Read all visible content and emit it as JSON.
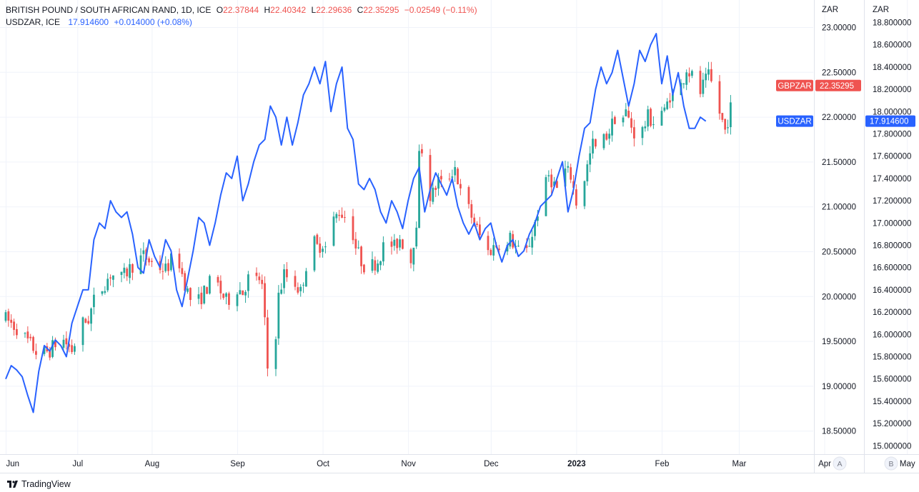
{
  "legend": {
    "main_symbol": "BRITISH POUND / SOUTH AFRICAN RAND, 1D, ICE",
    "o_label": "O",
    "o_value": "22.37844",
    "h_label": "H",
    "h_value": "22.40342",
    "l_label": "L",
    "l_value": "22.29636",
    "c_label": "C",
    "c_value": "22.35295",
    "change": "−0.02549 (−0.11%)",
    "compare_symbol": "USDZAR, ICE",
    "compare_value": "17.914600",
    "compare_change": "+0.014000 (+0.08%)"
  },
  "branding": {
    "text": "TradingView",
    "icon": "tradingview-logo-icon"
  },
  "colors": {
    "up": "#26a69a",
    "down": "#ef5350",
    "line": "#2962ff",
    "grid": "#f0f3fa",
    "axis_border": "#e0e3eb",
    "gbp_tag": "#ef5350",
    "usd_tag": "#2962ff"
  },
  "chart_data": {
    "type": "candlestick_with_line_overlay",
    "series": [
      {
        "name": "GBPZAR",
        "type": "candlestick",
        "axis": "A",
        "last_value": "22.35295",
        "ohlc_path": [
          [
            0,
            19.75
          ],
          [
            4,
            19.65
          ],
          [
            8,
            19.5
          ],
          [
            12,
            19.35
          ],
          [
            16,
            19.4
          ],
          [
            20,
            19.55
          ],
          [
            24,
            19.4
          ],
          [
            28,
            19.7
          ],
          [
            30,
            19.75
          ],
          [
            32,
            19.95
          ],
          [
            35,
            20.1
          ],
          [
            38,
            20.25
          ],
          [
            42,
            20.2
          ],
          [
            46,
            20.35
          ],
          [
            50,
            20.45
          ],
          [
            54,
            20.35
          ],
          [
            58,
            20.3
          ],
          [
            62,
            20.5
          ],
          [
            64,
            20.25
          ],
          [
            66,
            20.05
          ],
          [
            68,
            19.9
          ],
          [
            70,
            19.95
          ],
          [
            72,
            20.05
          ],
          [
            74,
            20.15
          ],
          [
            76,
            20.2
          ],
          [
            78,
            20.05
          ],
          [
            80,
            19.95
          ],
          [
            82,
            20.0
          ],
          [
            84,
            20.1
          ],
          [
            86,
            20.05
          ],
          [
            88,
            20.2
          ],
          [
            90,
            20.15
          ],
          [
            92,
            20.2
          ],
          [
            93,
            20.1
          ],
          [
            94,
            19.7
          ],
          [
            95,
            19.2
          ],
          [
            96,
            19.55
          ],
          [
            97,
            19.4
          ],
          [
            98,
            19.6
          ],
          [
            99,
            20.0
          ],
          [
            101,
            20.25
          ],
          [
            103,
            20.2
          ],
          [
            105,
            20.15
          ],
          [
            107,
            20.05
          ],
          [
            109,
            20.35
          ],
          [
            111,
            20.65
          ],
          [
            113,
            20.55
          ],
          [
            115,
            20.6
          ],
          [
            117,
            20.5
          ],
          [
            119,
            20.85
          ],
          [
            121,
            20.95
          ],
          [
            123,
            20.9
          ],
          [
            125,
            20.85
          ],
          [
            127,
            20.55
          ],
          [
            129,
            20.4
          ],
          [
            131,
            20.3
          ],
          [
            133,
            20.35
          ],
          [
            135,
            20.4
          ],
          [
            137,
            20.55
          ],
          [
            139,
            20.6
          ],
          [
            141,
            20.55
          ],
          [
            143,
            20.65
          ],
          [
            145,
            20.55
          ],
          [
            147,
            20.4
          ],
          [
            149,
            20.85
          ],
          [
            150,
            21.55
          ],
          [
            151,
            21.65
          ],
          [
            152,
            21.45
          ],
          [
            153,
            21.1
          ],
          [
            155,
            21.15
          ],
          [
            157,
            21.3
          ],
          [
            159,
            21.2
          ],
          [
            161,
            21.35
          ],
          [
            163,
            21.45
          ],
          [
            165,
            21.15
          ],
          [
            167,
            21.05
          ],
          [
            169,
            20.9
          ],
          [
            171,
            20.75
          ],
          [
            173,
            20.6
          ],
          [
            175,
            20.5
          ],
          [
            177,
            20.55
          ],
          [
            179,
            20.6
          ],
          [
            181,
            20.45
          ],
          [
            183,
            20.65
          ],
          [
            185,
            20.55
          ],
          [
            187,
            20.45
          ],
          [
            189,
            20.5
          ],
          [
            191,
            20.7
          ],
          [
            193,
            20.95
          ],
          [
            195,
            21.15
          ],
          [
            197,
            21.35
          ],
          [
            199,
            21.25
          ],
          [
            201,
            21.15
          ],
          [
            203,
            21.4
          ],
          [
            205,
            21.35
          ],
          [
            207,
            21.05
          ],
          [
            209,
            21.2
          ],
          [
            211,
            21.45
          ],
          [
            213,
            21.7
          ],
          [
            215,
            21.6
          ],
          [
            217,
            21.75
          ],
          [
            219,
            21.85
          ],
          [
            221,
            22.0
          ],
          [
            223,
            21.95
          ],
          [
            225,
            22.05
          ],
          [
            227,
            21.9
          ],
          [
            229,
            21.75
          ],
          [
            231,
            21.85
          ],
          [
            233,
            22.0
          ],
          [
            235,
            21.95
          ],
          [
            237,
            22.1
          ],
          [
            239,
            22.05
          ],
          [
            241,
            22.25
          ],
          [
            243,
            22.2
          ],
          [
            245,
            22.35
          ],
          [
            247,
            22.55
          ],
          [
            249,
            22.45
          ],
          [
            251,
            22.2
          ],
          [
            253,
            22.35
          ],
          [
            255,
            22.45
          ],
          [
            257,
            22.3
          ],
          [
            259,
            22.05
          ],
          [
            261,
            21.85
          ],
          [
            263,
            22.1
          ],
          [
            264,
            22.35
          ]
        ]
      },
      {
        "name": "USDZAR",
        "type": "line",
        "axis": "B",
        "last_value": "17.914600",
        "points": [
          [
            0,
            15.6
          ],
          [
            2,
            15.72
          ],
          [
            4,
            15.68
          ],
          [
            6,
            15.62
          ],
          [
            8,
            15.45
          ],
          [
            10,
            15.3
          ],
          [
            12,
            15.67
          ],
          [
            14,
            15.9
          ],
          [
            16,
            15.85
          ],
          [
            18,
            15.95
          ],
          [
            20,
            15.9
          ],
          [
            22,
            15.8
          ],
          [
            24,
            16.1
          ],
          [
            26,
            16.25
          ],
          [
            28,
            16.4
          ],
          [
            30,
            16.4
          ],
          [
            32,
            16.85
          ],
          [
            34,
            17.0
          ],
          [
            36,
            16.95
          ],
          [
            38,
            17.2
          ],
          [
            40,
            17.1
          ],
          [
            42,
            17.05
          ],
          [
            44,
            17.1
          ],
          [
            46,
            16.9
          ],
          [
            48,
            16.6
          ],
          [
            50,
            16.55
          ],
          [
            52,
            16.85
          ],
          [
            54,
            16.7
          ],
          [
            56,
            16.6
          ],
          [
            58,
            16.85
          ],
          [
            60,
            16.75
          ],
          [
            62,
            16.4
          ],
          [
            64,
            16.25
          ],
          [
            66,
            16.5
          ],
          [
            68,
            16.75
          ],
          [
            70,
            17.05
          ],
          [
            72,
            17.0
          ],
          [
            74,
            16.8
          ],
          [
            76,
            17.0
          ],
          [
            78,
            17.25
          ],
          [
            80,
            17.45
          ],
          [
            82,
            17.4
          ],
          [
            84,
            17.6
          ],
          [
            86,
            17.2
          ],
          [
            88,
            17.35
          ],
          [
            90,
            17.55
          ],
          [
            92,
            17.7
          ],
          [
            94,
            17.75
          ],
          [
            96,
            18.05
          ],
          [
            98,
            17.95
          ],
          [
            100,
            17.7
          ],
          [
            102,
            17.95
          ],
          [
            104,
            17.7
          ],
          [
            106,
            17.9
          ],
          [
            108,
            18.15
          ],
          [
            110,
            18.25
          ],
          [
            112,
            18.4
          ],
          [
            114,
            18.25
          ],
          [
            116,
            18.45
          ],
          [
            118,
            18.0
          ],
          [
            120,
            18.25
          ],
          [
            122,
            18.4
          ],
          [
            124,
            17.85
          ],
          [
            126,
            17.75
          ],
          [
            128,
            17.35
          ],
          [
            130,
            17.3
          ],
          [
            132,
            17.4
          ],
          [
            134,
            17.3
          ],
          [
            136,
            17.1
          ],
          [
            138,
            17.0
          ],
          [
            140,
            17.2
          ],
          [
            142,
            17.1
          ],
          [
            144,
            16.95
          ],
          [
            146,
            17.2
          ],
          [
            148,
            17.4
          ],
          [
            150,
            17.5
          ],
          [
            152,
            17.1
          ],
          [
            154,
            17.3
          ],
          [
            156,
            17.45
          ],
          [
            158,
            17.35
          ],
          [
            160,
            17.25
          ],
          [
            162,
            17.4
          ],
          [
            164,
            17.15
          ],
          [
            166,
            17.0
          ],
          [
            168,
            16.9
          ],
          [
            170,
            17.0
          ],
          [
            172,
            16.85
          ],
          [
            174,
            16.95
          ],
          [
            176,
            17.0
          ],
          [
            178,
            16.8
          ],
          [
            180,
            16.65
          ],
          [
            182,
            16.8
          ],
          [
            184,
            16.85
          ],
          [
            186,
            16.7
          ],
          [
            188,
            16.75
          ],
          [
            190,
            16.9
          ],
          [
            192,
            17.0
          ],
          [
            194,
            17.15
          ],
          [
            196,
            17.2
          ],
          [
            198,
            17.25
          ],
          [
            200,
            17.4
          ],
          [
            202,
            17.55
          ],
          [
            204,
            17.1
          ],
          [
            206,
            17.3
          ],
          [
            208,
            17.6
          ],
          [
            210,
            17.85
          ],
          [
            212,
            17.9
          ],
          [
            214,
            18.2
          ],
          [
            216,
            18.4
          ],
          [
            218,
            18.25
          ],
          [
            220,
            18.35
          ],
          [
            222,
            18.55
          ],
          [
            224,
            18.3
          ],
          [
            226,
            18.05
          ],
          [
            228,
            18.25
          ],
          [
            230,
            18.55
          ],
          [
            232,
            18.45
          ],
          [
            234,
            18.6
          ],
          [
            236,
            18.7
          ],
          [
            238,
            18.25
          ],
          [
            240,
            18.5
          ],
          [
            242,
            18.15
          ],
          [
            244,
            18.35
          ],
          [
            246,
            18.05
          ],
          [
            248,
            17.85
          ],
          [
            250,
            17.85
          ],
          [
            252,
            17.95
          ],
          [
            254,
            17.914
          ]
        ]
      }
    ],
    "axis_a": {
      "label": "ZAR",
      "ticks": [
        "23.00000",
        "22.50000",
        "22.00000",
        "21.50000",
        "21.00000",
        "20.50000",
        "20.00000",
        "19.50000",
        "19.00000",
        "18.50000"
      ],
      "range": [
        18.35,
        23.07
      ]
    },
    "axis_b": {
      "label": "ZAR",
      "ticks": [
        "18.800000",
        "18.600000",
        "18.400000",
        "18.200000",
        "18.000000",
        "17.800000",
        "17.600000",
        "17.400000",
        "17.200000",
        "17.000000",
        "16.800000",
        "16.600000",
        "16.400000",
        "16.200000",
        "16.000000",
        "15.800000",
        "15.600000",
        "15.400000",
        "15.200000",
        "15.000000"
      ]
    },
    "x_labels": [
      "Jun",
      "Jul",
      "Aug",
      "Sep",
      "Oct",
      "Nov",
      "Dec",
      "2023",
      "Feb",
      "Mar",
      "Apr",
      "May"
    ],
    "axis_buttons": [
      "A",
      "B"
    ],
    "price_tags": [
      {
        "label": "GBPZAR",
        "value": "22.35295",
        "y": 22.35295,
        "axis": "A",
        "color": "#ef5350"
      },
      {
        "label": "USDZAR",
        "value": "17.914600",
        "y": 17.9146,
        "axis": "B",
        "color": "#2962ff"
      }
    ],
    "grid": true
  }
}
